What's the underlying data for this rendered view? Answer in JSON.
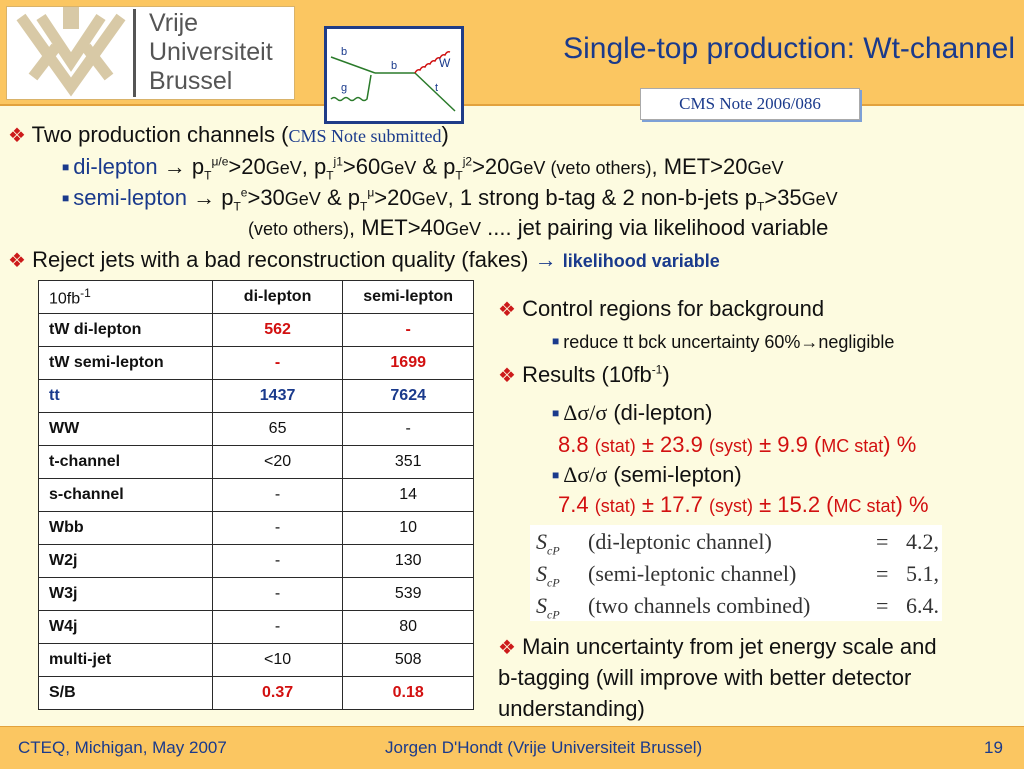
{
  "header": {
    "logo": {
      "line1": "Vrije",
      "line2": "Universiteit",
      "line3": "Brussel"
    },
    "title": "Single-top production: Wt-channel",
    "diagram_labels": {
      "b_in": "b",
      "g": "g",
      "b_mid": "b",
      "W": "W",
      "t": "t"
    },
    "reference": "CMS Note 2006/086"
  },
  "bullets": {
    "b1": {
      "text": "Two production channels (",
      "note": "CMS Note submitted",
      "close": ")"
    },
    "dilepton": {
      "label": "di-lepton",
      "arrow": " → p",
      "t1": "T",
      "s1": "μ/e",
      "r1": ">20",
      "u1": "GeV",
      "mid1": ", p",
      "t2": "T",
      "s2": "j1",
      "r2": ">60",
      "u2": "GeV",
      "mid2": " & p",
      "t3": "T",
      "s3": "j2",
      "r3": ">20",
      "u3": "GeV",
      "veto": " (veto others)",
      "met": ", MET>20",
      "u4": "GeV"
    },
    "semilepton": {
      "label": "semi-lepton",
      "arrow": " → p",
      "t1": "T",
      "s1": "e",
      "r1": ">30",
      "u1": "GeV",
      "mid1": " & p",
      "t2": "T",
      "s2": "μ",
      "r2": ">20",
      "u2": "GeV",
      "rest": ", 1 strong b-tag & 2 non-b-jets p",
      "t3": "T",
      "r3": ">35",
      "u3": "GeV",
      "line2_veto": "(veto others)",
      "line2_met": ", MET>40",
      "line2_unit": "GeV",
      "line2_rest": " .... jet pairing via likelihood variable"
    },
    "b2": {
      "text": "Reject jets with a bad reconstruction quality (fakes) ",
      "arrow": "→ ",
      "bold": "likelihood variable"
    }
  },
  "table": {
    "header": {
      "col0": "10fb",
      "col0_sup": "-1",
      "col1": "di-lepton",
      "col2": "semi-lepton"
    },
    "rows": [
      {
        "name": "tW di-lepton",
        "di": "562",
        "semi": "-"
      },
      {
        "name": "tW semi-lepton",
        "di": "-",
        "semi": "1699"
      },
      {
        "name": "tt",
        "di": "1437",
        "semi": "7624"
      },
      {
        "name": "WW",
        "di": "65",
        "semi": "-"
      },
      {
        "name": "t-channel",
        "di": "<20",
        "semi": "351"
      },
      {
        "name": "s-channel",
        "di": "-",
        "semi": "14"
      },
      {
        "name": "Wbb",
        "di": "-",
        "semi": "10"
      },
      {
        "name": "W2j",
        "di": "-",
        "semi": "130"
      },
      {
        "name": "W3j",
        "di": "-",
        "semi": "539"
      },
      {
        "name": "W4j",
        "di": "-",
        "semi": "80"
      },
      {
        "name": "multi-jet",
        "di": "<10",
        "semi": "508"
      },
      {
        "name": "S/B",
        "di": "0.37",
        "semi": "0.18"
      }
    ]
  },
  "right": {
    "control": "Control regions for background",
    "reduce": "reduce tt bck uncertainty 60%→negligible",
    "results": "Results (10fb",
    "results_sup": "-1",
    "results_close": ")",
    "dsig1": "Δσ/σ",
    "dsig1_label": " (di-lepton)",
    "res1": {
      "v": "8.8 ",
      "a": "(stat)",
      "b": " ± 23.9 ",
      "c": "(syst)",
      "d": " ± 9.9 (",
      "e": "MC stat",
      "f": ") %"
    },
    "dsig2": "Δσ/σ",
    "dsig2_label": " (semi-lepton)",
    "res2": {
      "v": "7.4 ",
      "a": "(stat)",
      "b": " ± 17.7 ",
      "c": "(syst)",
      "d": " ± 15.2 (",
      "e": "MC stat",
      "f": ") %"
    },
    "formula": [
      {
        "sym": "S",
        "sub": "cP",
        "desc": "(di-leptonic channel)",
        "eq": "=",
        "val": "4.2,"
      },
      {
        "sym": "S",
        "sub": "cP",
        "desc": "(semi-leptonic channel)",
        "eq": "=",
        "val": "5.1,"
      },
      {
        "sym": "S",
        "sub": "cP",
        "desc": "(two channels combined)",
        "eq": "=",
        "val": "6.4."
      }
    ],
    "main1": "Main uncertainty from jet energy scale and",
    "main2": "b-tagging (will improve with better detector",
    "main3": "understanding)"
  },
  "footer": {
    "left": "CTEQ, Michigan, May 2007",
    "center": "Jorgen D'Hondt  (Vrije Universiteit Brussel)",
    "page": "19"
  }
}
